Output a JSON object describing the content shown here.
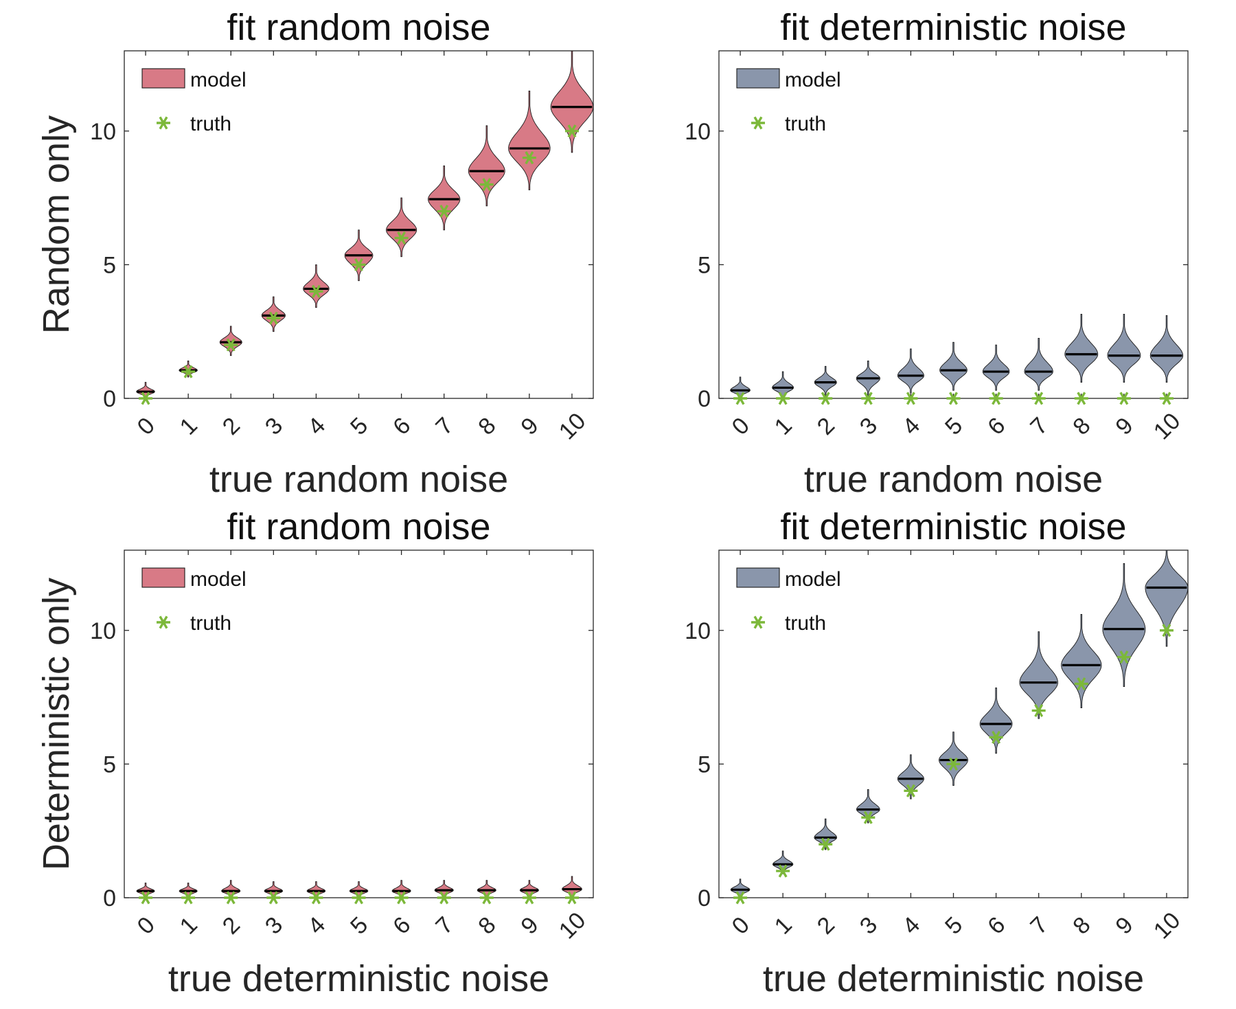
{
  "colors": {
    "random_model": "#d87a86",
    "deterministic_model": "#8a96ab",
    "truth": "#7cb83a",
    "median": "#000000"
  },
  "row_labels": [
    "Random only",
    "Deterministic only"
  ],
  "legend": {
    "model": "model",
    "truth": "truth"
  },
  "chart_data": [
    {
      "type": "violin",
      "title": "fit random noise",
      "xlabel": "true random noise",
      "ylabel": "Random only",
      "categories": [
        "0",
        "1",
        "2",
        "3",
        "4",
        "5",
        "6",
        "7",
        "8",
        "9",
        "10"
      ],
      "ylim": [
        0,
        13
      ],
      "yticks": [
        0,
        5,
        10
      ],
      "fill": "random_model",
      "series": [
        {
          "name": "model",
          "median": [
            0.25,
            1.05,
            2.1,
            3.1,
            4.1,
            5.35,
            6.3,
            7.45,
            8.5,
            9.35,
            10.9
          ],
          "min": [
            0,
            0.8,
            1.6,
            2.5,
            3.4,
            4.4,
            5.3,
            6.3,
            7.2,
            7.8,
            9.2
          ],
          "max": [
            0.6,
            1.4,
            2.7,
            3.8,
            5.0,
            6.3,
            7.5,
            8.7,
            10.2,
            11.5,
            13.0
          ]
        },
        {
          "name": "truth",
          "values": [
            0,
            1,
            2,
            3,
            4,
            5,
            6,
            7,
            8,
            9,
            10
          ]
        }
      ]
    },
    {
      "type": "violin",
      "title": "fit deterministic noise",
      "xlabel": "true random noise",
      "ylabel": "",
      "categories": [
        "0",
        "1",
        "2",
        "3",
        "4",
        "5",
        "6",
        "7",
        "8",
        "9",
        "10"
      ],
      "ylim": [
        0,
        13
      ],
      "yticks": [
        0,
        5,
        10
      ],
      "fill": "deterministic_model",
      "series": [
        {
          "name": "model",
          "median": [
            0.3,
            0.4,
            0.6,
            0.75,
            0.85,
            1.05,
            1.0,
            1.0,
            1.65,
            1.6,
            1.6
          ],
          "min": [
            0,
            0,
            0.1,
            0.1,
            0.2,
            0.3,
            0.3,
            0.3,
            0.6,
            0.6,
            0.6
          ],
          "max": [
            0.8,
            1.0,
            1.2,
            1.4,
            1.85,
            2.1,
            2.0,
            2.25,
            3.15,
            3.15,
            3.1
          ]
        },
        {
          "name": "truth",
          "values": [
            0,
            0,
            0,
            0,
            0,
            0,
            0,
            0,
            0,
            0,
            0
          ]
        }
      ]
    },
    {
      "type": "violin",
      "title": "fit random noise",
      "xlabel": "true deterministic noise",
      "ylabel": "Deterministic only",
      "categories": [
        "0",
        "1",
        "2",
        "3",
        "4",
        "5",
        "6",
        "7",
        "8",
        "9",
        "10"
      ],
      "ylim": [
        0,
        13
      ],
      "yticks": [
        0,
        5,
        10
      ],
      "fill": "random_model",
      "series": [
        {
          "name": "model",
          "median": [
            0.25,
            0.25,
            0.25,
            0.25,
            0.25,
            0.25,
            0.25,
            0.28,
            0.28,
            0.28,
            0.32
          ],
          "min": [
            0,
            0,
            0,
            0,
            0,
            0,
            0,
            0,
            0,
            0,
            0
          ],
          "max": [
            0.55,
            0.55,
            0.65,
            0.6,
            0.6,
            0.6,
            0.65,
            0.65,
            0.65,
            0.65,
            0.8
          ]
        },
        {
          "name": "truth",
          "values": [
            0,
            0,
            0,
            0,
            0,
            0,
            0,
            0,
            0,
            0,
            0
          ]
        }
      ]
    },
    {
      "type": "violin",
      "title": "fit deterministic noise",
      "xlabel": "true deterministic noise",
      "ylabel": "",
      "categories": [
        "0",
        "1",
        "2",
        "3",
        "4",
        "5",
        "6",
        "7",
        "8",
        "9",
        "10"
      ],
      "ylim": [
        0,
        13
      ],
      "yticks": [
        0,
        5,
        10
      ],
      "fill": "deterministic_model",
      "series": [
        {
          "name": "model",
          "median": [
            0.3,
            1.25,
            2.25,
            3.3,
            4.45,
            5.15,
            6.5,
            8.05,
            8.7,
            10.05,
            11.6
          ],
          "min": [
            0,
            0.9,
            1.8,
            2.8,
            3.7,
            4.2,
            5.4,
            6.7,
            7.1,
            7.9,
            9.4
          ],
          "max": [
            0.7,
            1.75,
            2.95,
            4.05,
            5.35,
            6.2,
            7.85,
            9.95,
            10.6,
            12.5,
            13.3
          ]
        },
        {
          "name": "truth",
          "values": [
            0,
            1,
            2,
            3,
            4,
            5,
            6,
            7,
            8,
            9,
            10
          ]
        }
      ]
    }
  ]
}
